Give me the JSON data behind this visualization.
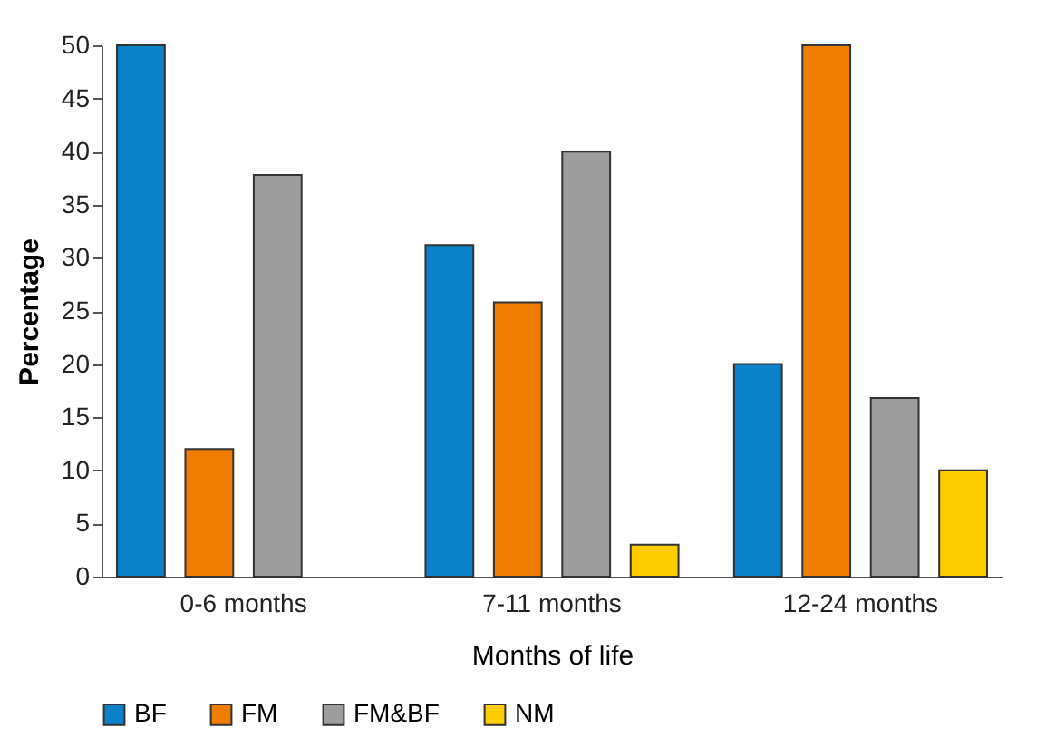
{
  "chart_data": {
    "type": "bar",
    "xlabel": "Months of life",
    "ylabel": "Percentage",
    "categories": [
      "0-6 months",
      "7-11 months",
      "12-24 months"
    ],
    "series": [
      {
        "name": "BF",
        "color": "#0a81c8",
        "values": [
          50,
          31.2,
          20
        ]
      },
      {
        "name": "FM",
        "color": "#ee7d00",
        "values": [
          12,
          25.8,
          50
        ]
      },
      {
        "name": "FM&BF",
        "color": "#9d9d9d",
        "values": [
          37.8,
          40,
          16.8
        ]
      },
      {
        "name": "NM",
        "color": "#ffcc00",
        "values": [
          null,
          3,
          10
        ]
      }
    ],
    "ylim": [
      0,
      50
    ],
    "yticks": [
      0,
      5,
      10,
      15,
      20,
      25,
      30,
      35,
      40,
      45,
      50
    ],
    "grid": false,
    "legend": "bottom"
  }
}
